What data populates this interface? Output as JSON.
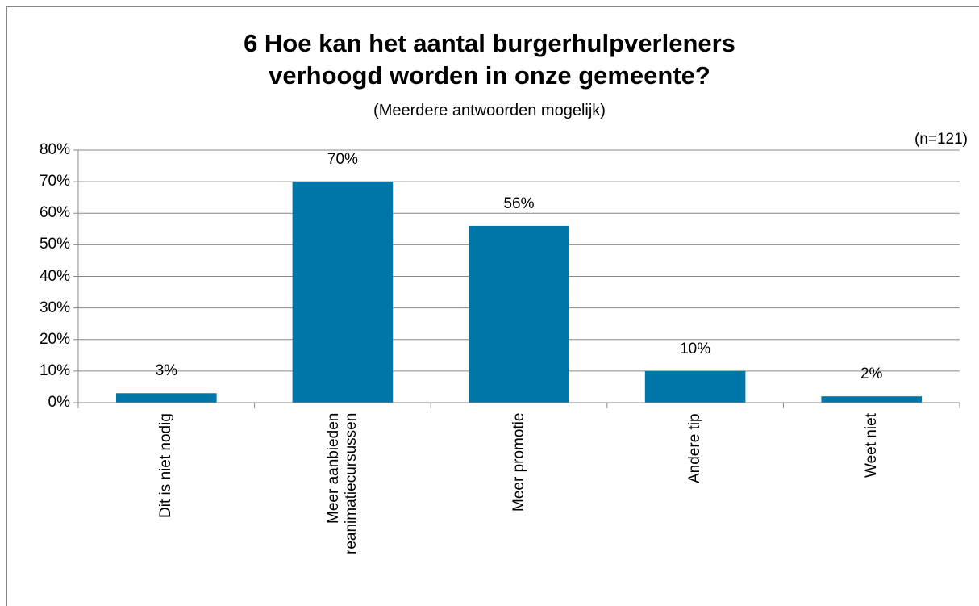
{
  "chart_data": {
    "type": "bar",
    "title": "6 Hoe kan het aantal burgerhulpverleners verhoogd worden in onze gemeente?",
    "subtitle": "(Meerdere antwoorden mogelijk)",
    "annotation": "(n=121)",
    "categories": [
      "Dit is niet nodig",
      "Meer aanbieden reanimatiecursussen",
      "Meer promotie",
      "Andere tip",
      "Weet niet"
    ],
    "values": [
      3,
      70,
      56,
      10,
      2
    ],
    "value_labels": [
      "3%",
      "70%",
      "56%",
      "10%",
      "2%"
    ],
    "color": "#0076a8",
    "ylim": [
      0,
      80
    ],
    "yticks": [
      {
        "value": 0,
        "label": "0%"
      },
      {
        "value": 10,
        "label": "10%"
      },
      {
        "value": 20,
        "label": "20%"
      },
      {
        "value": 30,
        "label": "30%"
      },
      {
        "value": 40,
        "label": "40%"
      },
      {
        "value": 50,
        "label": "50%"
      },
      {
        "value": 60,
        "label": "60%"
      },
      {
        "value": 70,
        "label": "70%"
      },
      {
        "value": 80,
        "label": "80%"
      }
    ],
    "grid": true
  }
}
